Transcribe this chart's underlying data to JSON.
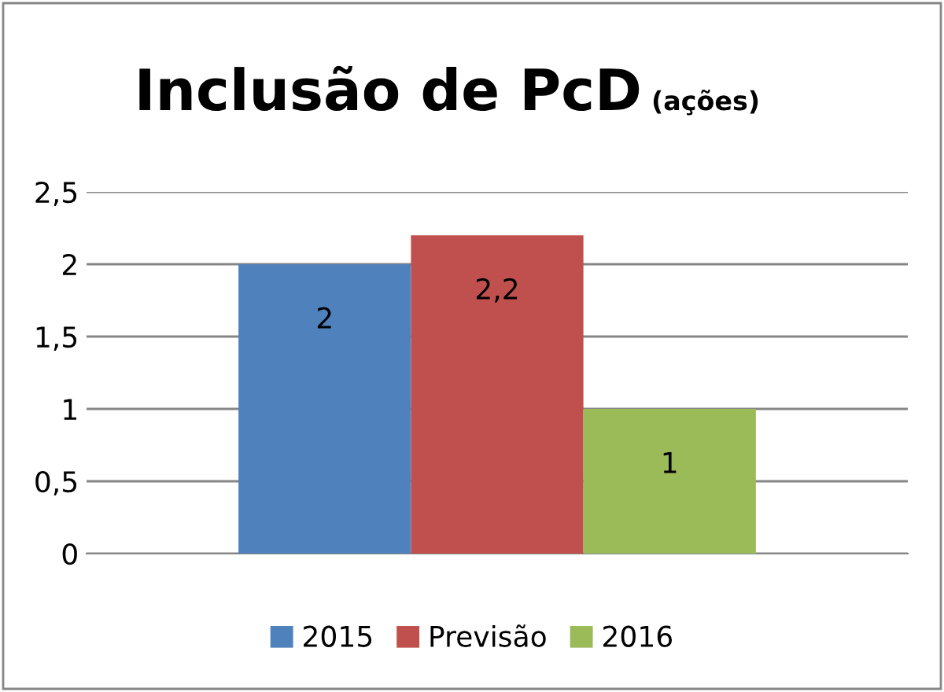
{
  "chart_data": {
    "type": "bar",
    "title": "Inclusão de PcD",
    "subtitle": "(ações)",
    "categories": [
      null
    ],
    "series": [
      {
        "name": "2015",
        "color": "#4f81bd",
        "values": [
          2
        ],
        "value_labels": [
          "2"
        ]
      },
      {
        "name": "Previsão",
        "color": "#c0504d",
        "values": [
          2.2
        ],
        "value_labels": [
          "2,2"
        ]
      },
      {
        "name": "2016",
        "color": "#9bbb59",
        "values": [
          1
        ],
        "value_labels": [
          "1"
        ]
      }
    ],
    "ylim": [
      0,
      2.5
    ],
    "yticks": [
      0,
      {
        "value": 0.5,
        "label": "0,5"
      },
      1,
      {
        "value": 1.5,
        "label": "1,5"
      },
      2,
      {
        "value": 2.5,
        "label": "2,5"
      }
    ],
    "grid": "y",
    "legend": "bottom"
  }
}
